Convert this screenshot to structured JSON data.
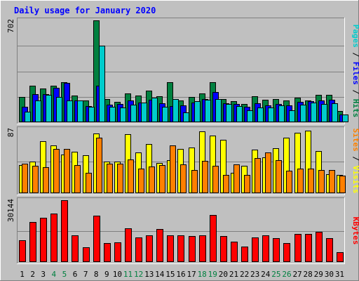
{
  "chart_data": {
    "type": "bar",
    "title": "Daily usage for January 2020",
    "days": [
      "1",
      "2",
      "3",
      "4",
      "5",
      "6",
      "7",
      "8",
      "9",
      "10",
      "11",
      "12",
      "13",
      "14",
      "15",
      "16",
      "17",
      "18",
      "19",
      "20",
      "21",
      "22",
      "23",
      "24",
      "25",
      "26",
      "27",
      "28",
      "29",
      "30",
      "31"
    ],
    "weekend_days": [
      "4",
      "5",
      "11",
      "12",
      "18",
      "19",
      "25",
      "26"
    ],
    "panels": [
      {
        "id": "hits",
        "ymax": 702,
        "ymax_label": "702",
        "side_label": [
          {
            "text": "Pages",
            "color": "#00cccc"
          },
          {
            "text": " / ",
            "color": "#000000"
          },
          {
            "text": "Files",
            "color": "#0000ff"
          },
          {
            "text": " / ",
            "color": "#000000"
          },
          {
            "text": "Hits",
            "color": "#008040"
          }
        ],
        "series": [
          {
            "name": "Hits",
            "color": "#008040",
            "values": [
              175,
              253,
              230,
              253,
              276,
              185,
              150,
              702,
              158,
              140,
              200,
              185,
              219,
              180,
              276,
              150,
              175,
              200,
              276,
              158,
              145,
              128,
              180,
              155,
              160,
              150,
              170,
              152,
              188,
              188,
              78
            ]
          },
          {
            "name": "Files",
            "color": "#0000ff",
            "values": [
              105,
              195,
              196,
              235,
              271,
              148,
              110,
              252,
              120,
              125,
              150,
              135,
              155,
              130,
              110,
              115,
              135,
              160,
              210,
              130,
              125,
              105,
              130,
              115,
              125,
              115,
              140,
              145,
              150,
              155,
              55
            ]
          },
          {
            "name": "Pages",
            "color": "#00cccc",
            "values": [
              72,
              150,
              190,
              175,
              150,
              150,
              105,
              530,
              108,
              102,
              120,
              135,
              170,
              108,
              162,
              70,
              145,
              155,
              160,
              125,
              110,
              80,
              100,
              100,
              115,
              82,
              120,
              135,
              124,
              130,
              55
            ]
          }
        ]
      },
      {
        "id": "visits",
        "ymax": 87,
        "ymax_label": "87",
        "side_label": [
          {
            "text": "Sites",
            "color": "#ff8000"
          },
          {
            "text": " / ",
            "color": "#000000"
          },
          {
            "text": "Visits",
            "color": "#ffff00"
          }
        ],
        "series": [
          {
            "name": "Visits",
            "color": "#ffff00",
            "values": [
              38,
              43,
              71,
              65,
              53,
              56,
              52,
              81,
              43,
              43,
              80,
              55,
              67,
              41,
              45,
              60,
              62,
              84,
              78,
              73,
              28,
              37,
              59,
              49,
              61,
              76,
              82,
              85,
              57,
              26,
              25
            ]
          },
          {
            "name": "Sites",
            "color": "#ff8000",
            "values": [
              40,
              37,
              35,
              60,
              60,
              38,
              28,
              76,
              40,
              40,
              46,
              33,
              36,
              38,
              65,
              39,
              32,
              44,
              37,
              25,
              39,
              25,
              48,
              55,
              45,
              31,
              33,
              33,
              32,
              32,
              24
            ]
          }
        ]
      },
      {
        "id": "kbytes",
        "ymax": 30144,
        "ymax_label": "30144",
        "side_label": [
          {
            "text": "KBytes",
            "color": "#ff0000"
          }
        ],
        "series": [
          {
            "name": "KBytes",
            "color": "#ff0000",
            "values": [
              10700,
              19500,
              21500,
              23500,
              30144,
              13000,
              7200,
              22500,
              9100,
              9500,
              16500,
              12000,
              13000,
              16000,
              13000,
              13000,
              12700,
              13000,
              22800,
              12700,
              10000,
              7500,
              11900,
              13000,
              11600,
              9300,
              13800,
              13800,
              14600,
              11700,
              4700
            ]
          }
        ]
      }
    ]
  }
}
